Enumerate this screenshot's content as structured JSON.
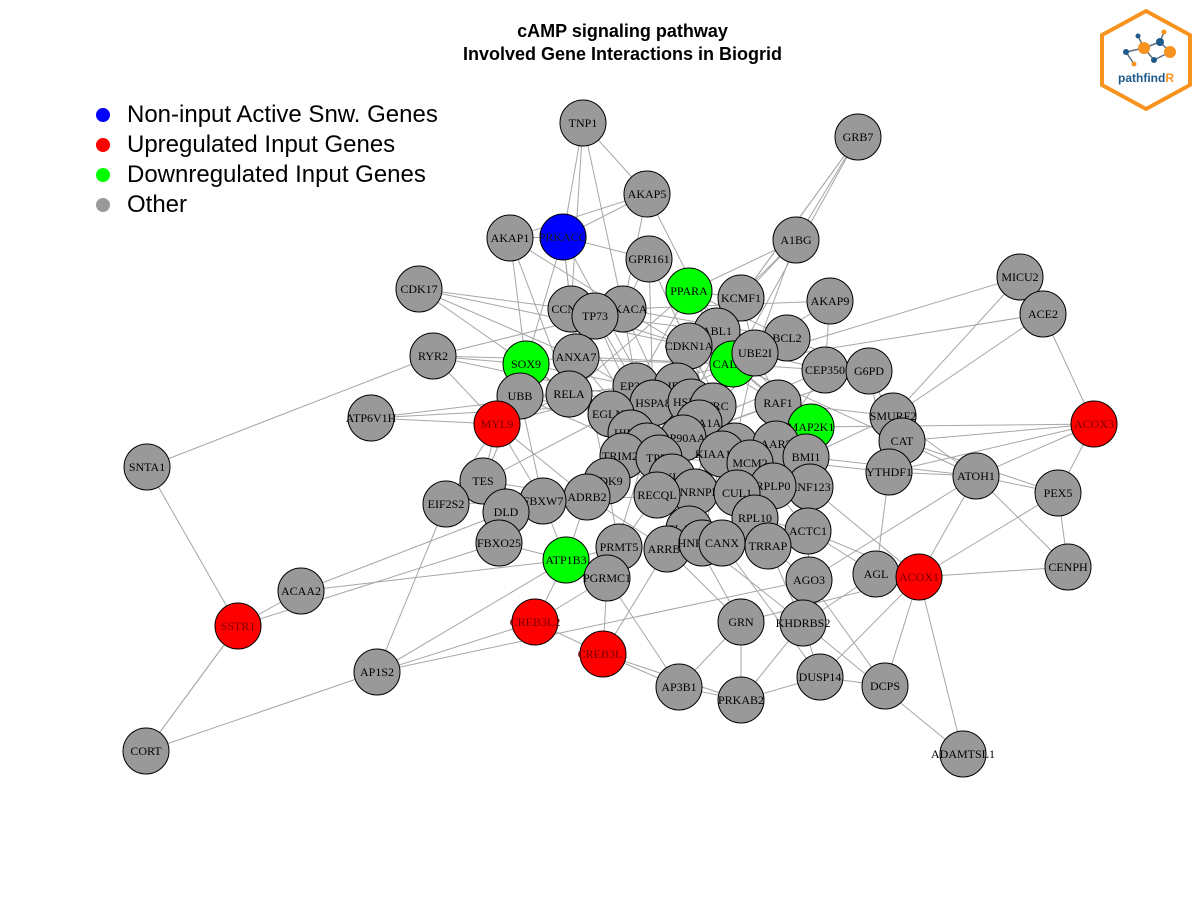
{
  "title": {
    "line1": "cAMP signaling pathway",
    "line2": "Involved Gene Interactions in Biogrid"
  },
  "legend": [
    {
      "label": "Non-input Active Snw. Genes",
      "color": "#0000ff"
    },
    {
      "label": "Upregulated Input Genes",
      "color": "#ff0000"
    },
    {
      "label": "Downregulated Input Genes",
      "color": "#00ff00"
    },
    {
      "label": "Other",
      "color": "#999999"
    }
  ],
  "colors": {
    "active": "#0000ff",
    "up": "#ff0000",
    "down": "#00ff00",
    "other": "#999999",
    "edge": "#a6a6a6",
    "node_border": "#000000"
  },
  "logo": {
    "text_main": "pathfind",
    "text_accent": "R",
    "main_color": "#1f5a8a",
    "accent_color": "#f7931e",
    "border_color": "#f7931e"
  },
  "nodes": [
    {
      "id": "TNP1",
      "type": "other"
    },
    {
      "id": "GRB7",
      "type": "other"
    },
    {
      "id": "AKAP5",
      "type": "other"
    },
    {
      "id": "AKAP1",
      "type": "other"
    },
    {
      "id": "PRKACG",
      "type": "active"
    },
    {
      "id": "A1BG",
      "type": "other"
    },
    {
      "id": "GPR161",
      "type": "other"
    },
    {
      "id": "MICU2",
      "type": "other"
    },
    {
      "id": "CDK17",
      "type": "other"
    },
    {
      "id": "PPARA",
      "type": "down"
    },
    {
      "id": "KCMF1",
      "type": "other"
    },
    {
      "id": "AKAP9",
      "type": "other"
    },
    {
      "id": "ACE2",
      "type": "other"
    },
    {
      "id": "CCND2",
      "type": "other"
    },
    {
      "id": "PRKACA",
      "type": "other"
    },
    {
      "id": "TP73",
      "type": "other"
    },
    {
      "id": "ABL1",
      "type": "other"
    },
    {
      "id": "BCL2",
      "type": "other"
    },
    {
      "id": "CDKN1A",
      "type": "other"
    },
    {
      "id": "RYR2",
      "type": "other"
    },
    {
      "id": "SOX9",
      "type": "down"
    },
    {
      "id": "ANXA7",
      "type": "other"
    },
    {
      "id": "CALM1",
      "type": "down"
    },
    {
      "id": "UBE2I",
      "type": "other"
    },
    {
      "id": "CEP350",
      "type": "other"
    },
    {
      "id": "G6PD",
      "type": "other"
    },
    {
      "id": "EP300",
      "type": "other"
    },
    {
      "id": "AIFM1",
      "type": "other"
    },
    {
      "id": "RELA",
      "type": "other"
    },
    {
      "id": "UBB",
      "type": "other"
    },
    {
      "id": "RAF1",
      "type": "other"
    },
    {
      "id": "HSPA8",
      "type": "other"
    },
    {
      "id": "HSPB1",
      "type": "other"
    },
    {
      "id": "BTRC",
      "type": "other"
    },
    {
      "id": "ATP6V1H",
      "type": "other"
    },
    {
      "id": "EGLN3",
      "type": "other"
    },
    {
      "id": "SMURF2",
      "type": "other"
    },
    {
      "id": "MYL9",
      "type": "up"
    },
    {
      "id": "HSPA1A",
      "type": "other"
    },
    {
      "id": "MAP2K1",
      "type": "down"
    },
    {
      "id": "ACOX3",
      "type": "up"
    },
    {
      "id": "HIF1A",
      "type": "other"
    },
    {
      "id": "CAT",
      "type": "other"
    },
    {
      "id": "HSP90AA1",
      "type": "other"
    },
    {
      "id": "CFTR",
      "type": "other"
    },
    {
      "id": "BRCA1",
      "type": "other"
    },
    {
      "id": "AAR2",
      "type": "other"
    },
    {
      "id": "KIAA1429",
      "type": "other"
    },
    {
      "id": "SNTA1",
      "type": "other"
    },
    {
      "id": "TRIM25",
      "type": "other"
    },
    {
      "id": "TP53",
      "type": "other"
    },
    {
      "id": "MCM2",
      "type": "other"
    },
    {
      "id": "BMI1",
      "type": "other"
    },
    {
      "id": "YTHDF1",
      "type": "other"
    },
    {
      "id": "ATOH1",
      "type": "other"
    },
    {
      "id": "CYLD",
      "type": "other"
    },
    {
      "id": "TES",
      "type": "other"
    },
    {
      "id": "CDK9",
      "type": "other"
    },
    {
      "id": "RNF123",
      "type": "other"
    },
    {
      "id": "RPLP0",
      "type": "other"
    },
    {
      "id": "PEX5",
      "type": "other"
    },
    {
      "id": "ADRB2",
      "type": "other"
    },
    {
      "id": "HNRNPL",
      "type": "other"
    },
    {
      "id": "CUL1",
      "type": "other"
    },
    {
      "id": "EIF2S2",
      "type": "other"
    },
    {
      "id": "FBXW7",
      "type": "other"
    },
    {
      "id": "RECQL",
      "type": "other"
    },
    {
      "id": "DLD",
      "type": "other"
    },
    {
      "id": "RPL10",
      "type": "other"
    },
    {
      "id": "ACTC1",
      "type": "other"
    },
    {
      "id": "ELAVL1",
      "type": "other"
    },
    {
      "id": "FBXO25",
      "type": "other"
    },
    {
      "id": "PRMT5",
      "type": "other"
    },
    {
      "id": "ATP1B3",
      "type": "down"
    },
    {
      "id": "ARRB2",
      "type": "other"
    },
    {
      "id": "HNRNPC",
      "type": "other"
    },
    {
      "id": "CANX",
      "type": "other"
    },
    {
      "id": "TRRAP",
      "type": "other"
    },
    {
      "id": "CENPH",
      "type": "other"
    },
    {
      "id": "AGL",
      "type": "other"
    },
    {
      "id": "ACOX1",
      "type": "up"
    },
    {
      "id": "PGRMC1",
      "type": "other"
    },
    {
      "id": "AGO3",
      "type": "other"
    },
    {
      "id": "ACAA2",
      "type": "other"
    },
    {
      "id": "SSTR1",
      "type": "up"
    },
    {
      "id": "CREB3L2",
      "type": "up"
    },
    {
      "id": "GRN",
      "type": "other"
    },
    {
      "id": "KHDRBS2",
      "type": "other"
    },
    {
      "id": "CREB3L1",
      "type": "up"
    },
    {
      "id": "AP1S2",
      "type": "other"
    },
    {
      "id": "DUSP14",
      "type": "other"
    },
    {
      "id": "AP3B1",
      "type": "other"
    },
    {
      "id": "DCPS",
      "type": "other"
    },
    {
      "id": "PRKAB2",
      "type": "other"
    },
    {
      "id": "CORT",
      "type": "other"
    },
    {
      "id": "ADAMTSL1",
      "type": "other"
    }
  ]
}
